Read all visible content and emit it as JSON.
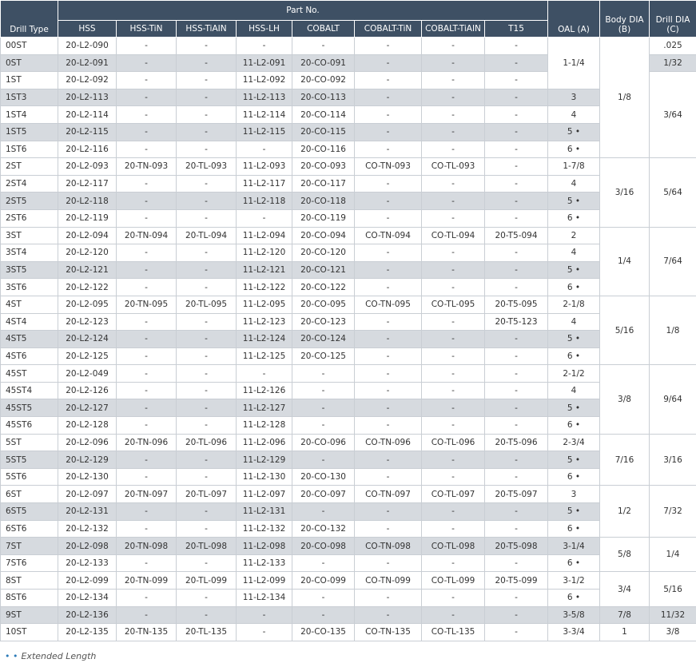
{
  "table": {
    "columns": [
      "Drill Type",
      "HSS",
      "HSS-TiN",
      "HSS-TiAIN",
      "HSS-LH",
      "COBALT",
      "COBALT-TiN",
      "COBALT-TiAIN",
      "T15",
      "OAL (A)",
      "Body DIA (B)",
      "Drill DIA (C)"
    ],
    "part_no_header": "Part No.",
    "rows": [
      [
        "00ST",
        "20-L2-090",
        "-",
        "-",
        "-",
        "-",
        "-",
        "-",
        "-"
      ],
      [
        "0ST",
        "20-L2-091",
        "-",
        "-",
        "11-L2-091",
        "20-CO-091",
        "-",
        "-",
        "-"
      ],
      [
        "1ST",
        "20-L2-092",
        "-",
        "-",
        "11-L2-092",
        "20-CO-092",
        "-",
        "-",
        "-"
      ],
      [
        "1ST3",
        "20-L2-113",
        "-",
        "-",
        "11-L2-113",
        "20-CO-113",
        "-",
        "-",
        "-"
      ],
      [
        "1ST4",
        "20-L2-114",
        "-",
        "-",
        "11-L2-114",
        "20-CO-114",
        "-",
        "-",
        "-"
      ],
      [
        "1ST5",
        "20-L2-115",
        "-",
        "-",
        "11-L2-115",
        "20-CO-115",
        "-",
        "-",
        "-"
      ],
      [
        "1ST6",
        "20-L2-116",
        "-",
        "-",
        "-",
        "20-CO-116",
        "-",
        "-",
        "-"
      ],
      [
        "2ST",
        "20-L2-093",
        "20-TN-093",
        "20-TL-093",
        "11-L2-093",
        "20-CO-093",
        "CO-TN-093",
        "CO-TL-093",
        "-"
      ],
      [
        "2ST4",
        "20-L2-117",
        "-",
        "-",
        "11-L2-117",
        "20-CO-117",
        "-",
        "-",
        "-"
      ],
      [
        "2ST5",
        "20-L2-118",
        "-",
        "-",
        "11-L2-118",
        "20-CO-118",
        "-",
        "-",
        "-"
      ],
      [
        "2ST6",
        "20-L2-119",
        "-",
        "-",
        "-",
        "20-CO-119",
        "-",
        "-",
        "-"
      ],
      [
        "3ST",
        "20-L2-094",
        "20-TN-094",
        "20-TL-094",
        "11-L2-094",
        "20-CO-094",
        "CO-TN-094",
        "CO-TL-094",
        "20-T5-094"
      ],
      [
        "3ST4",
        "20-L2-120",
        "-",
        "-",
        "11-L2-120",
        "20-CO-120",
        "-",
        "-",
        "-"
      ],
      [
        "3ST5",
        "20-L2-121",
        "-",
        "-",
        "11-L2-121",
        "20-CO-121",
        "-",
        "-",
        "-"
      ],
      [
        "3ST6",
        "20-L2-122",
        "-",
        "-",
        "11-L2-122",
        "20-CO-122",
        "-",
        "-",
        "-"
      ],
      [
        "4ST",
        "20-L2-095",
        "20-TN-095",
        "20-TL-095",
        "11-L2-095",
        "20-CO-095",
        "CO-TN-095",
        "CO-TL-095",
        "20-T5-095"
      ],
      [
        "4ST4",
        "20-L2-123",
        "-",
        "-",
        "11-L2-123",
        "20-CO-123",
        "-",
        "-",
        "20-T5-123"
      ],
      [
        "4ST5",
        "20-L2-124",
        "-",
        "-",
        "11-L2-124",
        "20-CO-124",
        "-",
        "-",
        "-"
      ],
      [
        "4ST6",
        "20-L2-125",
        "-",
        "-",
        "11-L2-125",
        "20-CO-125",
        "-",
        "-",
        "-"
      ],
      [
        "45ST",
        "20-L2-049",
        "-",
        "-",
        "-",
        "-",
        "-",
        "-",
        "-"
      ],
      [
        "45ST4",
        "20-L2-126",
        "-",
        "-",
        "11-L2-126",
        "-",
        "-",
        "-",
        "-"
      ],
      [
        "45ST5",
        "20-L2-127",
        "-",
        "-",
        "11-L2-127",
        "-",
        "-",
        "-",
        "-"
      ],
      [
        "45ST6",
        "20-L2-128",
        "-",
        "-",
        "11-L2-128",
        "-",
        "-",
        "-",
        "-"
      ],
      [
        "5ST",
        "20-L2-096",
        "20-TN-096",
        "20-TL-096",
        "11-L2-096",
        "20-CO-096",
        "CO-TN-096",
        "CO-TL-096",
        "20-T5-096"
      ],
      [
        "5ST5",
        "20-L2-129",
        "-",
        "-",
        "11-L2-129",
        "-",
        "-",
        "-",
        "-"
      ],
      [
        "5ST6",
        "20-L2-130",
        "-",
        "-",
        "11-L2-130",
        "20-CO-130",
        "-",
        "-",
        "-"
      ],
      [
        "6ST",
        "20-L2-097",
        "20-TN-097",
        "20-TL-097",
        "11-L2-097",
        "20-CO-097",
        "CO-TN-097",
        "CO-TL-097",
        "20-T5-097"
      ],
      [
        "6ST5",
        "20-L2-131",
        "-",
        "-",
        "11-L2-131",
        "-",
        "-",
        "-",
        "-"
      ],
      [
        "6ST6",
        "20-L2-132",
        "-",
        "-",
        "11-L2-132",
        "20-CO-132",
        "-",
        "-",
        "-"
      ],
      [
        "7ST",
        "20-L2-098",
        "20-TN-098",
        "20-TL-098",
        "11-L2-098",
        "20-CO-098",
        "CO-TN-098",
        "CO-TL-098",
        "20-T5-098"
      ],
      [
        "7ST6",
        "20-L2-133",
        "-",
        "-",
        "11-L2-133",
        "-",
        "-",
        "-",
        "-"
      ],
      [
        "8ST",
        "20-L2-099",
        "20-TN-099",
        "20-TL-099",
        "11-L2-099",
        "20-CO-099",
        "CO-TN-099",
        "CO-TL-099",
        "20-T5-099"
      ],
      [
        "8ST6",
        "20-L2-134",
        "-",
        "-",
        "11-L2-134",
        "-",
        "-",
        "-",
        "-"
      ],
      [
        "9ST",
        "20-L2-136",
        "-",
        "-",
        "-",
        "-",
        "-",
        "-",
        "-"
      ],
      [
        "10ST",
        "20-L2-135",
        "20-TN-135",
        "20-TL-135",
        "-",
        "20-CO-135",
        "CO-TN-135",
        "CO-TL-135",
        "-"
      ]
    ],
    "oal": [
      "1-1/4",
      "3",
      "4",
      "5 •",
      "6 •",
      "1-7/8",
      "4",
      "5 •",
      "6 •",
      "2",
      "4",
      "5 •",
      "6 •",
      "2-1/8",
      "4",
      "5 •",
      "6 •",
      "2-1/2",
      "4",
      "5 •",
      "6 •",
      "2-3/4",
      "5 •",
      "6 •",
      "3",
      "5 •",
      "6 •",
      "3-1/4",
      "6 •",
      "3-1/2",
      "6 •",
      "3-5/8",
      "3-3/4"
    ],
    "body_dia": [
      "1/8",
      "3/16",
      "1/4",
      "5/16",
      "3/8",
      "7/16",
      "1/2",
      "5/8",
      "3/4",
      "7/8",
      "1"
    ],
    "drill_dia": [
      ".025",
      "1/32",
      "3/64",
      "5/64",
      "7/64",
      "1/8",
      "9/64",
      "3/16",
      "7/32",
      "1/4",
      "5/16",
      "11/32",
      "3/8"
    ]
  },
  "footnote": {
    "marker": "• •",
    "text": "Extended Length"
  }
}
